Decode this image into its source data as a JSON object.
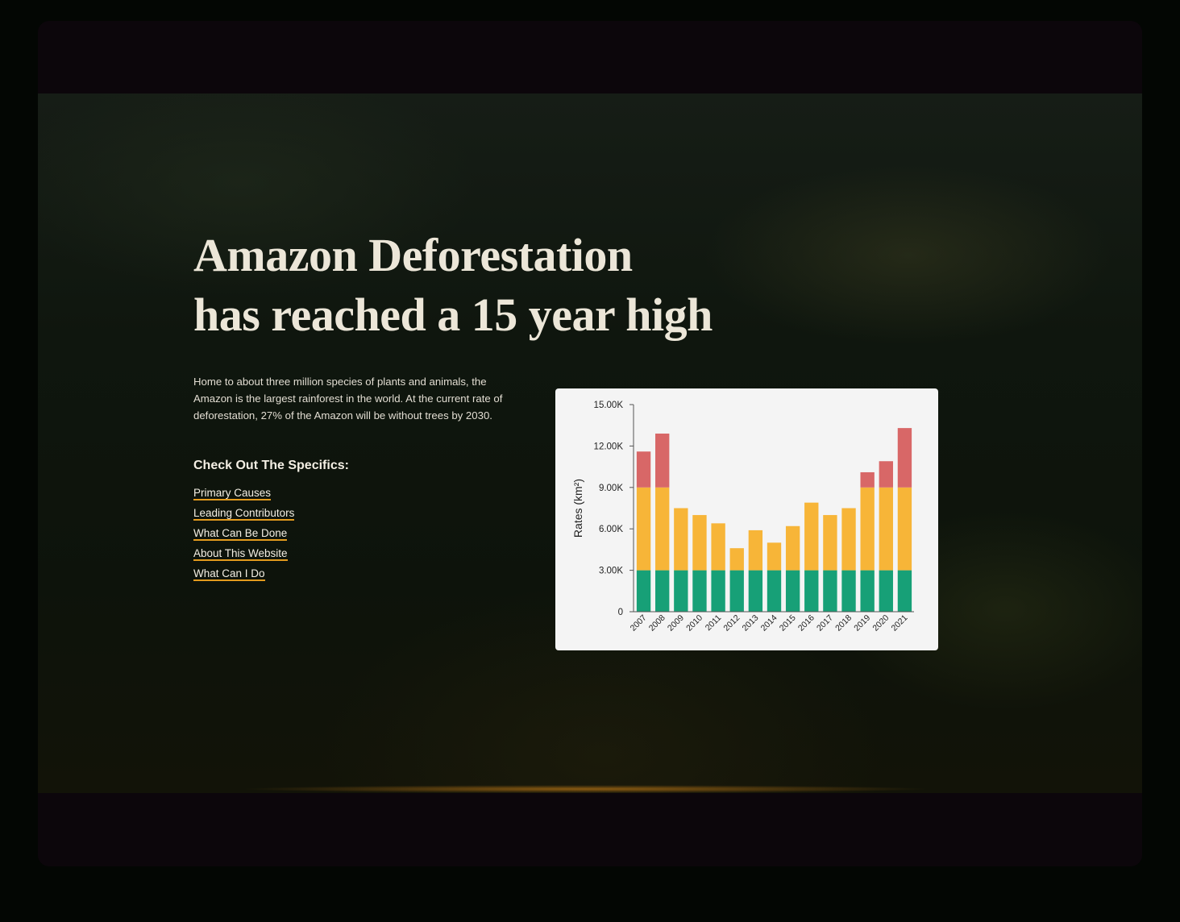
{
  "hero": {
    "title_line1": "Amazon Deforestation",
    "title_line2": "has reached a 15 year high",
    "intro": "Home to about three million species of plants and animals, the Amazon is the largest rainforest in the world. At the current rate of deforestation, 27% of the Amazon will be without trees by 2030.",
    "specifics_heading": "Check Out The Specifics:",
    "links": [
      {
        "label": "Primary Causes"
      },
      {
        "label": "Leading Contributors"
      },
      {
        "label": "What Can Be Done"
      },
      {
        "label": "About This Website"
      },
      {
        "label": "What Can I Do"
      }
    ]
  },
  "colors": {
    "link_underline": "#e39b1e",
    "series_base": "#17a077",
    "series_middle": "#f7b538",
    "series_top": "#d86767"
  },
  "chart_data": {
    "type": "bar",
    "stacked": true,
    "ylabel": "Rates (km²)",
    "xlabel": "",
    "ylim": [
      0,
      15000
    ],
    "yticks": [
      0,
      3000,
      6000,
      9000,
      12000,
      15000
    ],
    "ytick_labels": [
      "0",
      "3.00K",
      "6.00K",
      "9.00K",
      "12.00K",
      "15.00K"
    ],
    "categories": [
      "2007",
      "2008",
      "2009",
      "2010",
      "2011",
      "2012",
      "2013",
      "2014",
      "2015",
      "2016",
      "2017",
      "2018",
      "2019",
      "2020",
      "2021"
    ],
    "series": [
      {
        "color": "#17a077",
        "values": [
          3000,
          3000,
          3000,
          3000,
          3000,
          3000,
          3000,
          3000,
          3000,
          3000,
          3000,
          3000,
          3000,
          3000,
          3000
        ]
      },
      {
        "color": "#f7b538",
        "values": [
          6000,
          6000,
          4500,
          4000,
          3400,
          1600,
          2900,
          2000,
          3200,
          4900,
          4000,
          4500,
          6000,
          6000,
          6000
        ]
      },
      {
        "color": "#d86767",
        "values": [
          2600,
          3900,
          0,
          0,
          0,
          0,
          0,
          0,
          0,
          0,
          0,
          0,
          1100,
          1900,
          4300
        ]
      }
    ],
    "grid": false,
    "legend": "none"
  }
}
